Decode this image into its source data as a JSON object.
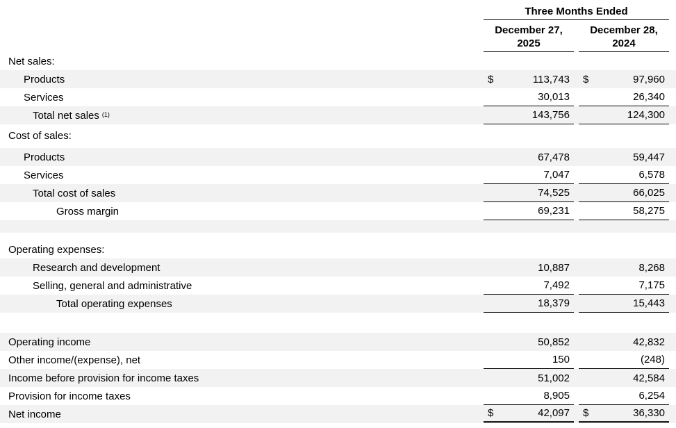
{
  "colors": {
    "row_shade": "#f2f2f2",
    "rule": "#000000",
    "text": "#000000"
  },
  "table": {
    "header": {
      "span_title": "Three Months Ended",
      "columns": [
        {
          "line1": "December 27,",
          "line2": "2025"
        },
        {
          "line1": "December 28,",
          "line2": "2024"
        }
      ]
    },
    "rows": [
      {
        "type": "row",
        "label": "Net sales:",
        "indent": 0,
        "shaded": false,
        "col1": "",
        "col2": ""
      },
      {
        "type": "row",
        "label": "Products",
        "indent": 1,
        "shaded": true,
        "dollar": true,
        "col1": "113,743",
        "col2": "97,960"
      },
      {
        "type": "row",
        "label": "Services",
        "indent": 1,
        "shaded": false,
        "col1": "30,013",
        "col2": "26,340",
        "rule": "single"
      },
      {
        "type": "row",
        "label": "Total net sales",
        "sup": "(1)",
        "indent": 2,
        "shaded": true,
        "col1": "143,756",
        "col2": "124,300",
        "rule": "single"
      },
      {
        "type": "spacer",
        "height": 3,
        "shaded": false
      },
      {
        "type": "row",
        "label": "Cost of sales:",
        "indent": 0,
        "shaded": false,
        "col1": "",
        "col2": ""
      },
      {
        "type": "spacer",
        "height": 5,
        "shaded": false
      },
      {
        "type": "row",
        "label": "Products",
        "indent": 1,
        "shaded": true,
        "col1": "67,478",
        "col2": "59,447"
      },
      {
        "type": "row",
        "label": "Services",
        "indent": 1,
        "shaded": false,
        "col1": "7,047",
        "col2": "6,578",
        "rule": "single"
      },
      {
        "type": "row",
        "label": "Total cost of sales",
        "indent": 2,
        "shaded": true,
        "col1": "74,525",
        "col2": "66,025",
        "rule": "single"
      },
      {
        "type": "row",
        "label": "Gross margin",
        "indent": 3,
        "shaded": false,
        "col1": "69,231",
        "col2": "58,275",
        "rule": "single"
      },
      {
        "type": "spacer",
        "height": 18,
        "shaded": true
      },
      {
        "type": "spacer",
        "height": 11,
        "shaded": false
      },
      {
        "type": "row",
        "label": "Operating expenses:",
        "indent": 0,
        "shaded": false,
        "col1": "",
        "col2": ""
      },
      {
        "type": "row",
        "label": "Research and development",
        "indent": 2,
        "shaded": true,
        "col1": "10,887",
        "col2": "8,268"
      },
      {
        "type": "row",
        "label": "Selling, general and administrative",
        "indent": 2,
        "shaded": false,
        "col1": "7,492",
        "col2": "7,175",
        "rule": "single"
      },
      {
        "type": "row",
        "label": "Total operating expenses",
        "indent": 3,
        "shaded": true,
        "col1": "18,379",
        "col2": "15,443",
        "rule": "single"
      },
      {
        "type": "spacer",
        "height": 29,
        "shaded": false
      },
      {
        "type": "row",
        "label": "Operating income",
        "indent": 0,
        "shaded": true,
        "col1": "50,852",
        "col2": "42,832"
      },
      {
        "type": "row",
        "label": "Other income/(expense), net",
        "indent": 0,
        "shaded": false,
        "col1": "150",
        "col2": "(248)",
        "rule": "single"
      },
      {
        "type": "row",
        "label": "Income before provision for income taxes",
        "indent": 0,
        "shaded": true,
        "col1": "51,002",
        "col2": "42,584"
      },
      {
        "type": "row",
        "label": "Provision for income taxes",
        "indent": 0,
        "shaded": false,
        "col1": "8,905",
        "col2": "6,254",
        "rule": "single"
      },
      {
        "type": "row",
        "label": "Net income",
        "indent": 0,
        "shaded": true,
        "dollar": true,
        "col1": "42,097",
        "col2": "36,330",
        "rule": "double"
      }
    ]
  }
}
